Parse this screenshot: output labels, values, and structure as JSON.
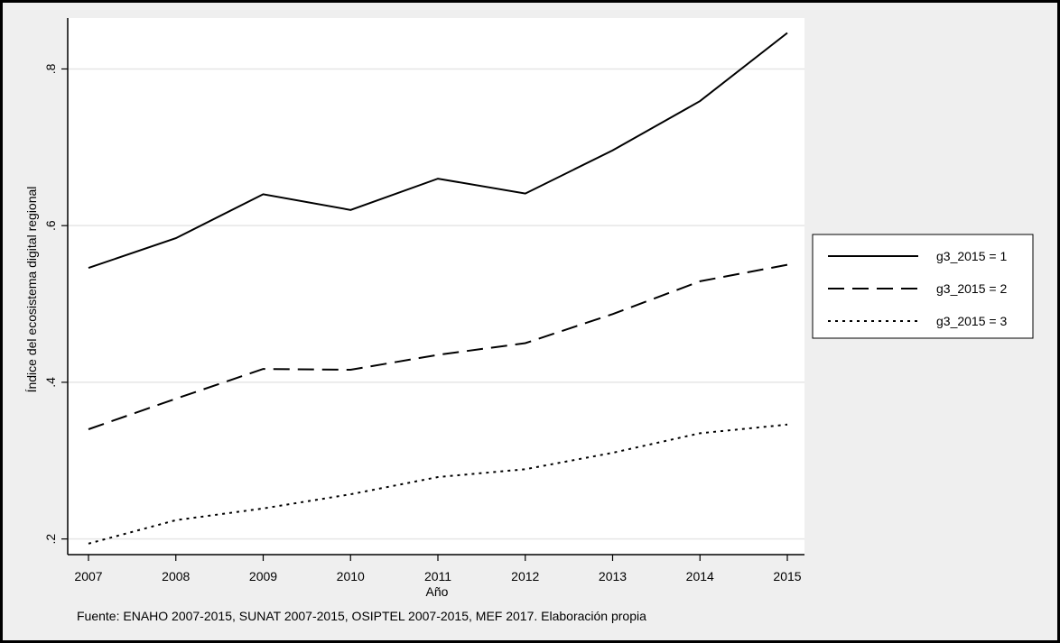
{
  "chart_data": {
    "type": "line",
    "title": "",
    "xlabel": "Año",
    "ylabel": "Índice del ecosistema digital regional",
    "x": [
      2007,
      2008,
      2009,
      2010,
      2011,
      2012,
      2013,
      2014,
      2015
    ],
    "xticks": [
      "2007",
      "2008",
      "2009",
      "2010",
      "2011",
      "2012",
      "2013",
      "2014",
      "2015"
    ],
    "yticks": [
      {
        "value": 0.2,
        "label": ".2"
      },
      {
        "value": 0.4,
        "label": ".4"
      },
      {
        "value": 0.6,
        "label": ".6"
      },
      {
        "value": 0.8,
        "label": ".8"
      }
    ],
    "xlim": [
      2007,
      2015
    ],
    "ylim": [
      0.18,
      0.865
    ],
    "grid": true,
    "legend_position": "right",
    "series": [
      {
        "name": "g3_2015 = 1",
        "style": "solid",
        "values": [
          0.546,
          0.584,
          0.64,
          0.62,
          0.66,
          0.641,
          0.696,
          0.759,
          0.846
        ]
      },
      {
        "name": "g3_2015 = 2",
        "style": "dashed",
        "values": [
          0.34,
          0.379,
          0.417,
          0.416,
          0.435,
          0.45,
          0.487,
          0.529,
          0.55
        ]
      },
      {
        "name": "g3_2015 = 3",
        "style": "dotted",
        "values": [
          0.194,
          0.224,
          0.239,
          0.257,
          0.279,
          0.289,
          0.31,
          0.335,
          0.346
        ]
      }
    ],
    "note": "Fuente: ENAHO 2007-2015, SUNAT 2007-2015, OSIPTEL 2007-2015, MEF 2017. Elaboración propia"
  },
  "colors": {
    "background": "#efefef",
    "plot_background": "#ffffff",
    "line": "#000000",
    "grid": "#e6e6e6"
  }
}
